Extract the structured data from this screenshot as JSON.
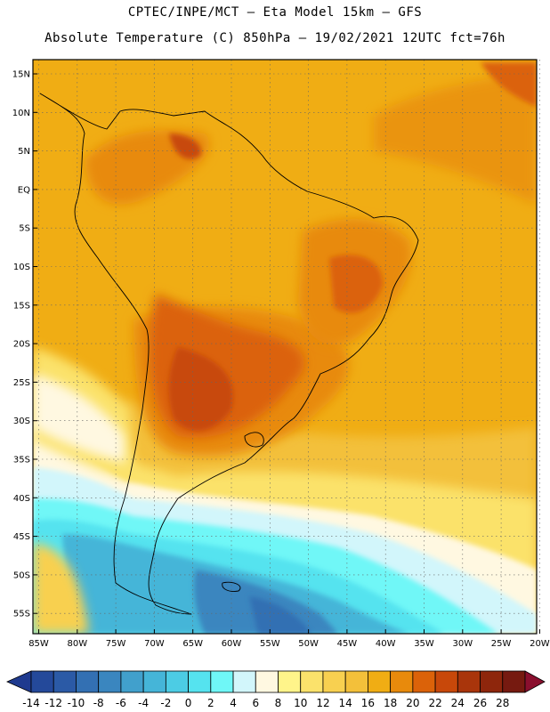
{
  "header": {
    "line1": "CPTEC/INPE/MCT –  Eta Model 15km – GFS",
    "line2": "Absolute Temperature (C) 850hPa – 19/02/2021 12UTC fct=76h"
  },
  "axes": {
    "lat_labels": [
      "15N",
      "10N",
      "5N",
      "EQ",
      "5S",
      "10S",
      "15S",
      "20S",
      "25S",
      "30S",
      "35S",
      "40S",
      "45S",
      "50S",
      "55S"
    ],
    "lon_labels": [
      "85W",
      "80W",
      "75W",
      "70W",
      "65W",
      "60W",
      "55W",
      "50W",
      "45W",
      "40W",
      "35W",
      "30W",
      "25W",
      "20W"
    ]
  },
  "colorbar": {
    "unit": "C",
    "ticks": [
      "-14",
      "-12",
      "-10",
      "-8",
      "-6",
      "-4",
      "-2",
      "0",
      "2",
      "4",
      "6",
      "8",
      "10",
      "12",
      "14",
      "16",
      "18",
      "20",
      "22",
      "24",
      "26",
      "28"
    ],
    "colors": [
      "#1f3a8f",
      "#24499a",
      "#2b5aa6",
      "#3370b3",
      "#3a86bf",
      "#41a0cc",
      "#45b5d8",
      "#4ccce4",
      "#55e3ef",
      "#6ff7f7",
      "#d2f6fb",
      "#fff8e1",
      "#fff48a",
      "#fbe26b",
      "#f8d050",
      "#f3c03a",
      "#f0ad14",
      "#e88a0c",
      "#db6209",
      "#c8480a",
      "#a9350b",
      "#8e260c",
      "#761a10",
      "#8a0f2e"
    ]
  }
}
